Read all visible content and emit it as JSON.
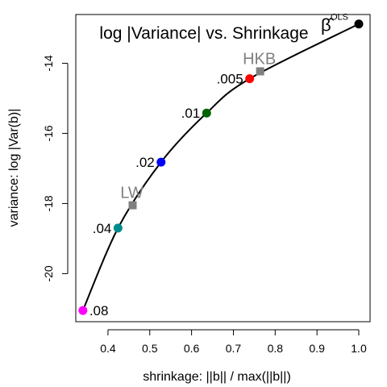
{
  "chart_data": {
    "type": "line",
    "title": "log |Variance| vs. Shrinkage",
    "xlabel": "shrinkage: ||b|| / max(||b||)",
    "ylabel": "variance: log |Var(b)|",
    "xlim": [
      0.323,
      1.027
    ],
    "ylim": [
      -21.37,
      -12.61
    ],
    "xticks": [
      0.4,
      0.5,
      0.6,
      0.7,
      0.8,
      0.9,
      1.0
    ],
    "xtick_labels": [
      "0.4",
      "0.5",
      "0.6",
      "0.7",
      "0.8",
      "0.9",
      "1.0"
    ],
    "yticks": [
      -20,
      -18,
      -16,
      -14
    ],
    "ytick_labels": [
      "-20",
      "-18",
      "-16",
      "-14"
    ],
    "grid": false,
    "series": [
      {
        "x": [
          1.0,
          0.739,
          0.636,
          0.527,
          0.424,
          0.34
        ],
        "y": [
          -12.88,
          -14.44,
          -15.42,
          -16.82,
          -18.7,
          -21.05
        ],
        "point_labels": [
          "OLS",
          ".005",
          ".01",
          ".02",
          ".04",
          ".08"
        ],
        "point_colors": [
          "#000000",
          "#ff0000",
          "#006400",
          "#0000ff",
          "#008b8b",
          "#ff00ff"
        ]
      }
    ],
    "special_points": [
      {
        "label": "HKB",
        "x": 0.764,
        "y": -14.23,
        "color": "#808080"
      },
      {
        "label": "LW",
        "x": 0.459,
        "y": -18.05,
        "color": "#808080"
      }
    ],
    "ols_symbol": "β̂"
  }
}
